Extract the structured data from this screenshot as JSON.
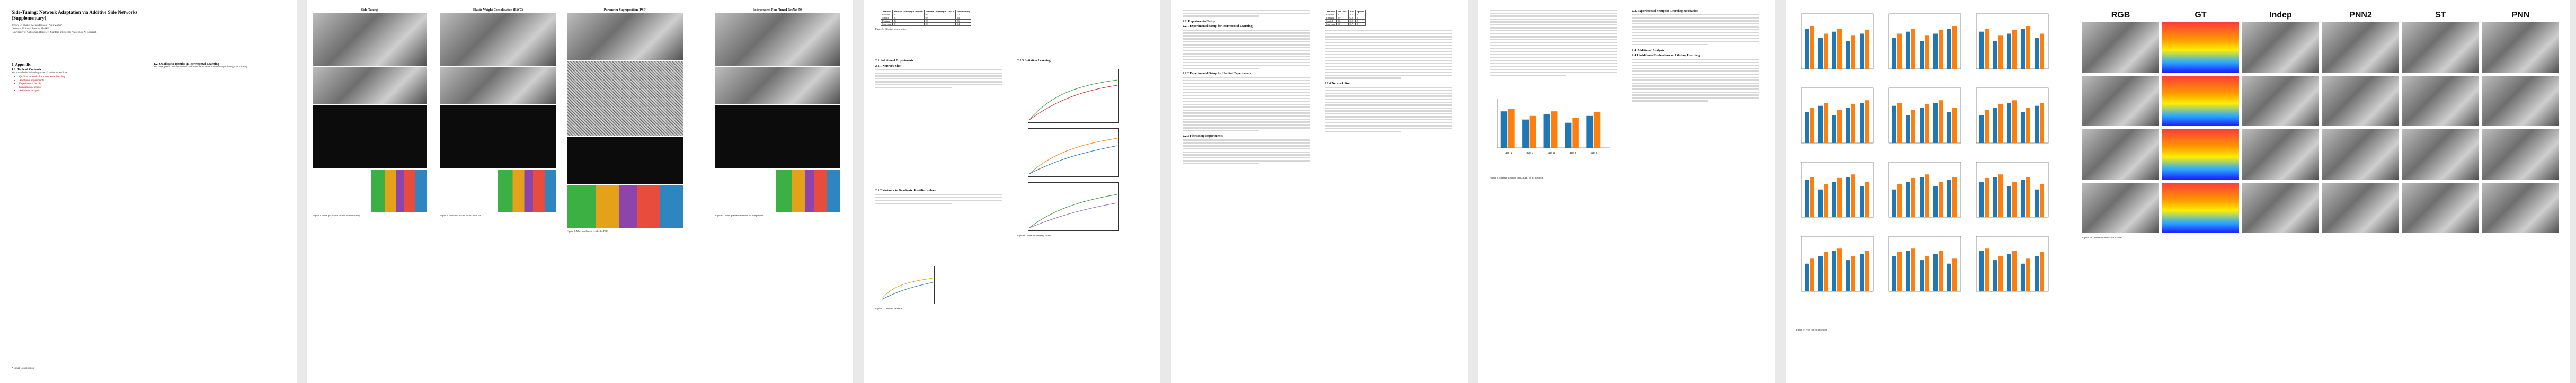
{
  "page1": {
    "title": "Side-Tuning: Network Adaptation via Additive Side Networks (Supplementary)",
    "authors_line1": "Jeffrey O. Zhang¹  Alexander Sax¹²  Amir Zamir¹³",
    "authors_line2": "Leonidas Guibas¹²  Jitendra Malik¹²",
    "affiliations": "¹University of California, Berkeley  ²Stanford University  ³Facebook AI Research",
    "sec_appendix": "1. Appendix",
    "sec_toc": "1.1. Table of Contents",
    "toc_intro": "We provide the following material in the appendices:",
    "toc": [
      "Qualitative results for incremental learning",
      "Additional experiments",
      "Experimental details",
      "Experimental setups",
      "Additional analysis"
    ],
    "sec_qual": "1.2. Qualitative Results in Incremental Learning",
    "qual_text": "We show predictions for some fixed set of landmarks on test images throughout training.",
    "footnote": "* Equal Contribution"
  },
  "page2": {
    "col_titles": [
      "Side-Tuning",
      "Elastic Weight Consolidation (EWC)",
      "Parameter Superposition (PSP)",
      "Independent Fine-Tuned ResNet-50"
    ],
    "captions": [
      "Figure 1. More qualitative results for side-tuning.",
      "Figure 2. More qualitative results for EWC.",
      "Figure 3. More qualitative results for PSP.",
      "Figure 4. More qualitative results for independent."
    ]
  },
  "page3": {
    "table_headers": [
      "Method",
      "Transfer Learning in Habitat",
      "Transfer Learning in CIFAR",
      "Imitation (B)"
    ],
    "table_rows": [
      [
        "Features",
        "0.3",
        "0.4",
        "1.2"
      ],
      [
        "Scratch",
        "0.7",
        "0.9",
        "3.4"
      ],
      [
        "Finetune",
        "0.2",
        "0.5",
        "0.6"
      ],
      [
        "Side-tune",
        "0.1",
        "0.3",
        "0.4"
      ]
    ],
    "fig5_caption": "Figure 5. Effect of network size.",
    "sec_add_exp": "2.1. Additional Experiments",
    "sub_network_size": "2.1.1 Network Size",
    "sub_variance": "2.1.2 Variance in Gradients: Rectified values",
    "sub_imitation": "2.1.3 Imitation Learning",
    "fig6_caption": "Figure 6. Imitation learning curves.",
    "fig7_caption": "Figure 7. Gradient variance."
  },
  "page4": {
    "sec_setup": "2.2. Experimental Setup",
    "sub_il": "2.2.1 Experimental Setup for Incremental Learning",
    "table2_headers": [
      "Method",
      "Rel. Perf.",
      "Loss",
      "Epochs"
    ],
    "table2_rows": [
      [
        "Features",
        "0.1",
        "1.2",
        "5"
      ],
      [
        "Finetune",
        "0.9",
        "0.8",
        "5"
      ],
      [
        "Scratch",
        "0.6",
        "0.9",
        "5"
      ],
      [
        "Side-tune",
        "1.0",
        "0.7",
        "5"
      ]
    ],
    "sub_rl": "2.2.2 Experimental Setup for Habitat Experiments",
    "sub_ft": "2.2.3 Finetuning Experiments",
    "sub_ns": "2.2.4 Network Size"
  },
  "page5": {
    "sec_lw": "2.3. Experimental Setup for Learning Mechanics",
    "sec_analysis": "2.4. Additional Analysis",
    "sub_ll": "2.4.1 Additional Evaluations on Lifelong Learning",
    "fig8_caption": "Figure 8. Average accuracy on iCIFAR for all methods.",
    "fig9_caption": "Figure 9. Plots for each method.",
    "chart_data": {
      "type": "bar",
      "title": "",
      "categories": [
        "Task 1",
        "Task 2",
        "Task 3",
        "Task 4",
        "Task 5"
      ],
      "series": [
        {
          "name": "",
          "color": "#1f77b4",
          "values": [
            0.8,
            0.62,
            0.74,
            0.55,
            0.7
          ]
        },
        {
          "name": "",
          "color": "#ff7f0e",
          "values": [
            0.85,
            0.7,
            0.8,
            0.66,
            0.78
          ]
        }
      ],
      "ylim": [
        0,
        1
      ]
    }
  },
  "page6": {
    "col_labels": [
      "RGB",
      "GT",
      "Indep",
      "PNN2",
      "ST",
      "PNN"
    ],
    "fig10_caption": "Figure 10. Qualitative results for Habitat.",
    "fig11_caption": "Figure 11. Qualitative results for Taskonomy."
  }
}
